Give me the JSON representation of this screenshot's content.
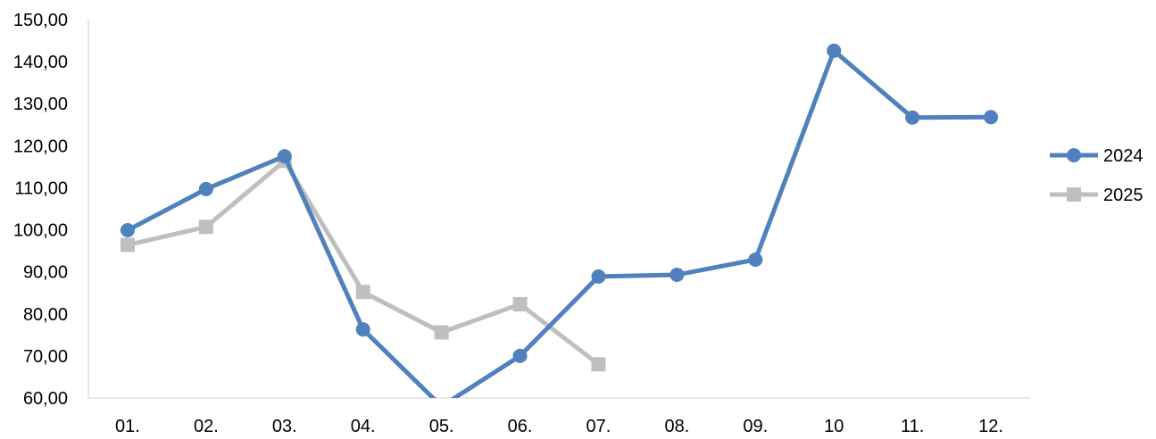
{
  "chart_data": {
    "type": "line",
    "title": "",
    "xlabel": "",
    "ylabel": "",
    "categories": [
      "01.",
      "02.",
      "03.",
      "04.",
      "05.",
      "06.",
      "07.",
      "08.",
      "09.",
      "10",
      "11.",
      "12."
    ],
    "ylim": [
      60,
      150
    ],
    "yticks": [
      "60,00",
      "70,00",
      "80,00",
      "90,00",
      "100,00",
      "110,00",
      "120,00",
      "130,00",
      "140,00",
      "150,00"
    ],
    "grid": false,
    "legend_position": "right",
    "series": [
      {
        "name": "2024",
        "color": "#4F81BD",
        "marker": "circle",
        "values": [
          99.9,
          109.7,
          117.5,
          76.3,
          58.0,
          70.0,
          88.9,
          89.3,
          92.9,
          142.6,
          126.7,
          126.8
        ]
      },
      {
        "name": "2025",
        "color": "#BFBFBF",
        "marker": "square",
        "values": [
          96.4,
          100.7,
          116.4,
          85.2,
          75.6,
          82.3,
          68.0,
          null,
          null,
          null,
          null,
          null
        ]
      }
    ]
  }
}
